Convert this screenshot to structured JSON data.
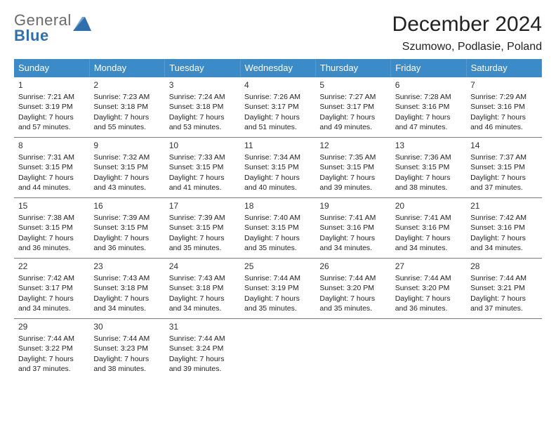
{
  "logo": {
    "top": "General",
    "bottom": "Blue",
    "top_color": "#6b6b6b",
    "bottom_color": "#2f6fae",
    "triangle_color": "#2f6fae"
  },
  "title": "December 2024",
  "location": "Szumowo, Podlasie, Poland",
  "header_bg": "#3b8bc9",
  "weekdays": [
    "Sunday",
    "Monday",
    "Tuesday",
    "Wednesday",
    "Thursday",
    "Friday",
    "Saturday"
  ],
  "weeks": [
    [
      {
        "day": "1",
        "sunrise": "Sunrise: 7:21 AM",
        "sunset": "Sunset: 3:19 PM",
        "dl1": "Daylight: 7 hours",
        "dl2": "and 57 minutes."
      },
      {
        "day": "2",
        "sunrise": "Sunrise: 7:23 AM",
        "sunset": "Sunset: 3:18 PM",
        "dl1": "Daylight: 7 hours",
        "dl2": "and 55 minutes."
      },
      {
        "day": "3",
        "sunrise": "Sunrise: 7:24 AM",
        "sunset": "Sunset: 3:18 PM",
        "dl1": "Daylight: 7 hours",
        "dl2": "and 53 minutes."
      },
      {
        "day": "4",
        "sunrise": "Sunrise: 7:26 AM",
        "sunset": "Sunset: 3:17 PM",
        "dl1": "Daylight: 7 hours",
        "dl2": "and 51 minutes."
      },
      {
        "day": "5",
        "sunrise": "Sunrise: 7:27 AM",
        "sunset": "Sunset: 3:17 PM",
        "dl1": "Daylight: 7 hours",
        "dl2": "and 49 minutes."
      },
      {
        "day": "6",
        "sunrise": "Sunrise: 7:28 AM",
        "sunset": "Sunset: 3:16 PM",
        "dl1": "Daylight: 7 hours",
        "dl2": "and 47 minutes."
      },
      {
        "day": "7",
        "sunrise": "Sunrise: 7:29 AM",
        "sunset": "Sunset: 3:16 PM",
        "dl1": "Daylight: 7 hours",
        "dl2": "and 46 minutes."
      }
    ],
    [
      {
        "day": "8",
        "sunrise": "Sunrise: 7:31 AM",
        "sunset": "Sunset: 3:15 PM",
        "dl1": "Daylight: 7 hours",
        "dl2": "and 44 minutes."
      },
      {
        "day": "9",
        "sunrise": "Sunrise: 7:32 AM",
        "sunset": "Sunset: 3:15 PM",
        "dl1": "Daylight: 7 hours",
        "dl2": "and 43 minutes."
      },
      {
        "day": "10",
        "sunrise": "Sunrise: 7:33 AM",
        "sunset": "Sunset: 3:15 PM",
        "dl1": "Daylight: 7 hours",
        "dl2": "and 41 minutes."
      },
      {
        "day": "11",
        "sunrise": "Sunrise: 7:34 AM",
        "sunset": "Sunset: 3:15 PM",
        "dl1": "Daylight: 7 hours",
        "dl2": "and 40 minutes."
      },
      {
        "day": "12",
        "sunrise": "Sunrise: 7:35 AM",
        "sunset": "Sunset: 3:15 PM",
        "dl1": "Daylight: 7 hours",
        "dl2": "and 39 minutes."
      },
      {
        "day": "13",
        "sunrise": "Sunrise: 7:36 AM",
        "sunset": "Sunset: 3:15 PM",
        "dl1": "Daylight: 7 hours",
        "dl2": "and 38 minutes."
      },
      {
        "day": "14",
        "sunrise": "Sunrise: 7:37 AM",
        "sunset": "Sunset: 3:15 PM",
        "dl1": "Daylight: 7 hours",
        "dl2": "and 37 minutes."
      }
    ],
    [
      {
        "day": "15",
        "sunrise": "Sunrise: 7:38 AM",
        "sunset": "Sunset: 3:15 PM",
        "dl1": "Daylight: 7 hours",
        "dl2": "and 36 minutes."
      },
      {
        "day": "16",
        "sunrise": "Sunrise: 7:39 AM",
        "sunset": "Sunset: 3:15 PM",
        "dl1": "Daylight: 7 hours",
        "dl2": "and 36 minutes."
      },
      {
        "day": "17",
        "sunrise": "Sunrise: 7:39 AM",
        "sunset": "Sunset: 3:15 PM",
        "dl1": "Daylight: 7 hours",
        "dl2": "and 35 minutes."
      },
      {
        "day": "18",
        "sunrise": "Sunrise: 7:40 AM",
        "sunset": "Sunset: 3:15 PM",
        "dl1": "Daylight: 7 hours",
        "dl2": "and 35 minutes."
      },
      {
        "day": "19",
        "sunrise": "Sunrise: 7:41 AM",
        "sunset": "Sunset: 3:16 PM",
        "dl1": "Daylight: 7 hours",
        "dl2": "and 34 minutes."
      },
      {
        "day": "20",
        "sunrise": "Sunrise: 7:41 AM",
        "sunset": "Sunset: 3:16 PM",
        "dl1": "Daylight: 7 hours",
        "dl2": "and 34 minutes."
      },
      {
        "day": "21",
        "sunrise": "Sunrise: 7:42 AM",
        "sunset": "Sunset: 3:16 PM",
        "dl1": "Daylight: 7 hours",
        "dl2": "and 34 minutes."
      }
    ],
    [
      {
        "day": "22",
        "sunrise": "Sunrise: 7:42 AM",
        "sunset": "Sunset: 3:17 PM",
        "dl1": "Daylight: 7 hours",
        "dl2": "and 34 minutes."
      },
      {
        "day": "23",
        "sunrise": "Sunrise: 7:43 AM",
        "sunset": "Sunset: 3:18 PM",
        "dl1": "Daylight: 7 hours",
        "dl2": "and 34 minutes."
      },
      {
        "day": "24",
        "sunrise": "Sunrise: 7:43 AM",
        "sunset": "Sunset: 3:18 PM",
        "dl1": "Daylight: 7 hours",
        "dl2": "and 34 minutes."
      },
      {
        "day": "25",
        "sunrise": "Sunrise: 7:44 AM",
        "sunset": "Sunset: 3:19 PM",
        "dl1": "Daylight: 7 hours",
        "dl2": "and 35 minutes."
      },
      {
        "day": "26",
        "sunrise": "Sunrise: 7:44 AM",
        "sunset": "Sunset: 3:20 PM",
        "dl1": "Daylight: 7 hours",
        "dl2": "and 35 minutes."
      },
      {
        "day": "27",
        "sunrise": "Sunrise: 7:44 AM",
        "sunset": "Sunset: 3:20 PM",
        "dl1": "Daylight: 7 hours",
        "dl2": "and 36 minutes."
      },
      {
        "day": "28",
        "sunrise": "Sunrise: 7:44 AM",
        "sunset": "Sunset: 3:21 PM",
        "dl1": "Daylight: 7 hours",
        "dl2": "and 37 minutes."
      }
    ],
    [
      {
        "day": "29",
        "sunrise": "Sunrise: 7:44 AM",
        "sunset": "Sunset: 3:22 PM",
        "dl1": "Daylight: 7 hours",
        "dl2": "and 37 minutes."
      },
      {
        "day": "30",
        "sunrise": "Sunrise: 7:44 AM",
        "sunset": "Sunset: 3:23 PM",
        "dl1": "Daylight: 7 hours",
        "dl2": "and 38 minutes."
      },
      {
        "day": "31",
        "sunrise": "Sunrise: 7:44 AM",
        "sunset": "Sunset: 3:24 PM",
        "dl1": "Daylight: 7 hours",
        "dl2": "and 39 minutes."
      },
      {
        "filler": true
      },
      {
        "filler": true
      },
      {
        "filler": true
      },
      {
        "filler": true
      }
    ]
  ]
}
